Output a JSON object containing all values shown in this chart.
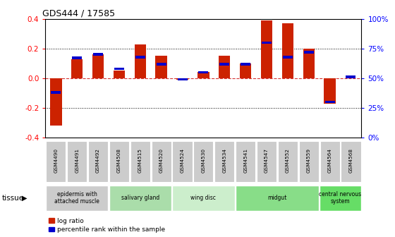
{
  "title": "GDS444 / 17585",
  "samples": [
    "GSM4490",
    "GSM4491",
    "GSM4492",
    "GSM4508",
    "GSM4515",
    "GSM4520",
    "GSM4524",
    "GSM4530",
    "GSM4534",
    "GSM4541",
    "GSM4547",
    "GSM4552",
    "GSM4559",
    "GSM4564",
    "GSM4568"
  ],
  "log_ratio": [
    -0.32,
    0.13,
    0.16,
    0.05,
    0.23,
    0.15,
    -0.01,
    0.04,
    0.15,
    0.1,
    0.39,
    0.37,
    0.2,
    -0.17,
    0.0
  ],
  "percentile": [
    38,
    67,
    70,
    58,
    68,
    62,
    49,
    55,
    62,
    62,
    80,
    68,
    72,
    30,
    51
  ],
  "tissue_groups": [
    {
      "label": "epidermis with\nattached muscle",
      "start": 0,
      "end": 2,
      "color": "#cccccc"
    },
    {
      "label": "salivary gland",
      "start": 3,
      "end": 5,
      "color": "#aaddaa"
    },
    {
      "label": "wing disc",
      "start": 6,
      "end": 8,
      "color": "#cceecc"
    },
    {
      "label": "midgut",
      "start": 9,
      "end": 12,
      "color": "#88dd88"
    },
    {
      "label": "central nervous\nsystem",
      "start": 13,
      "end": 14,
      "color": "#66dd66"
    }
  ],
  "bar_width": 0.55,
  "red_color": "#cc2200",
  "blue_color": "#0000cc",
  "ylim_left": [
    -0.4,
    0.4
  ],
  "pct_ticks": [
    0,
    25,
    50,
    75,
    100
  ],
  "left_yticks": [
    -0.4,
    -0.2,
    0.0,
    0.2,
    0.4
  ],
  "legend_label_red": "log ratio",
  "legend_label_blue": "percentile rank within the sample",
  "tissue_label": "tissue",
  "fig_bg": "#ffffff",
  "dotted_gridlines": [
    -0.2,
    0.2
  ],
  "zero_line_color": "#cc0000",
  "grid_color": "#000000"
}
